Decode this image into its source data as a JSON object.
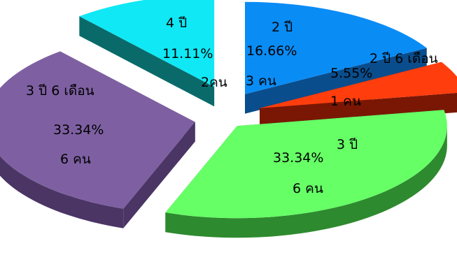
{
  "chart_data": {
    "type": "pie",
    "style": "3d-exploded",
    "slices": [
      {
        "key": "2y",
        "category": "2 ปี",
        "percent": "16.66%",
        "value": 16.66,
        "count": "3 คน",
        "top": "#0a8cf5",
        "side": "#0a4d8c"
      },
      {
        "key": "2y6m",
        "category": "2 ปี 6 เดือน",
        "percent": "5.55%",
        "value": 5.55,
        "count": "1 คน",
        "top": "#ff3d0d",
        "side": "#7a1704"
      },
      {
        "key": "3y",
        "category": "3 ปี",
        "percent": "33.34%",
        "value": 33.34,
        "count": "6 คน",
        "top": "#66ff66",
        "side": "#2e8a2e"
      },
      {
        "key": "3y6m",
        "category": "3 ปี 6 เดือน",
        "percent": "33.34%",
        "value": 33.34,
        "count": "6 คน",
        "top": "#7e60a2",
        "side": "#4a3565"
      },
      {
        "key": "4y",
        "category": "4 ปี",
        "percent": "11.11%",
        "value": 11.11,
        "count": "2คน",
        "top": "#10e8f5",
        "side": "#0a6a6a"
      }
    ]
  }
}
